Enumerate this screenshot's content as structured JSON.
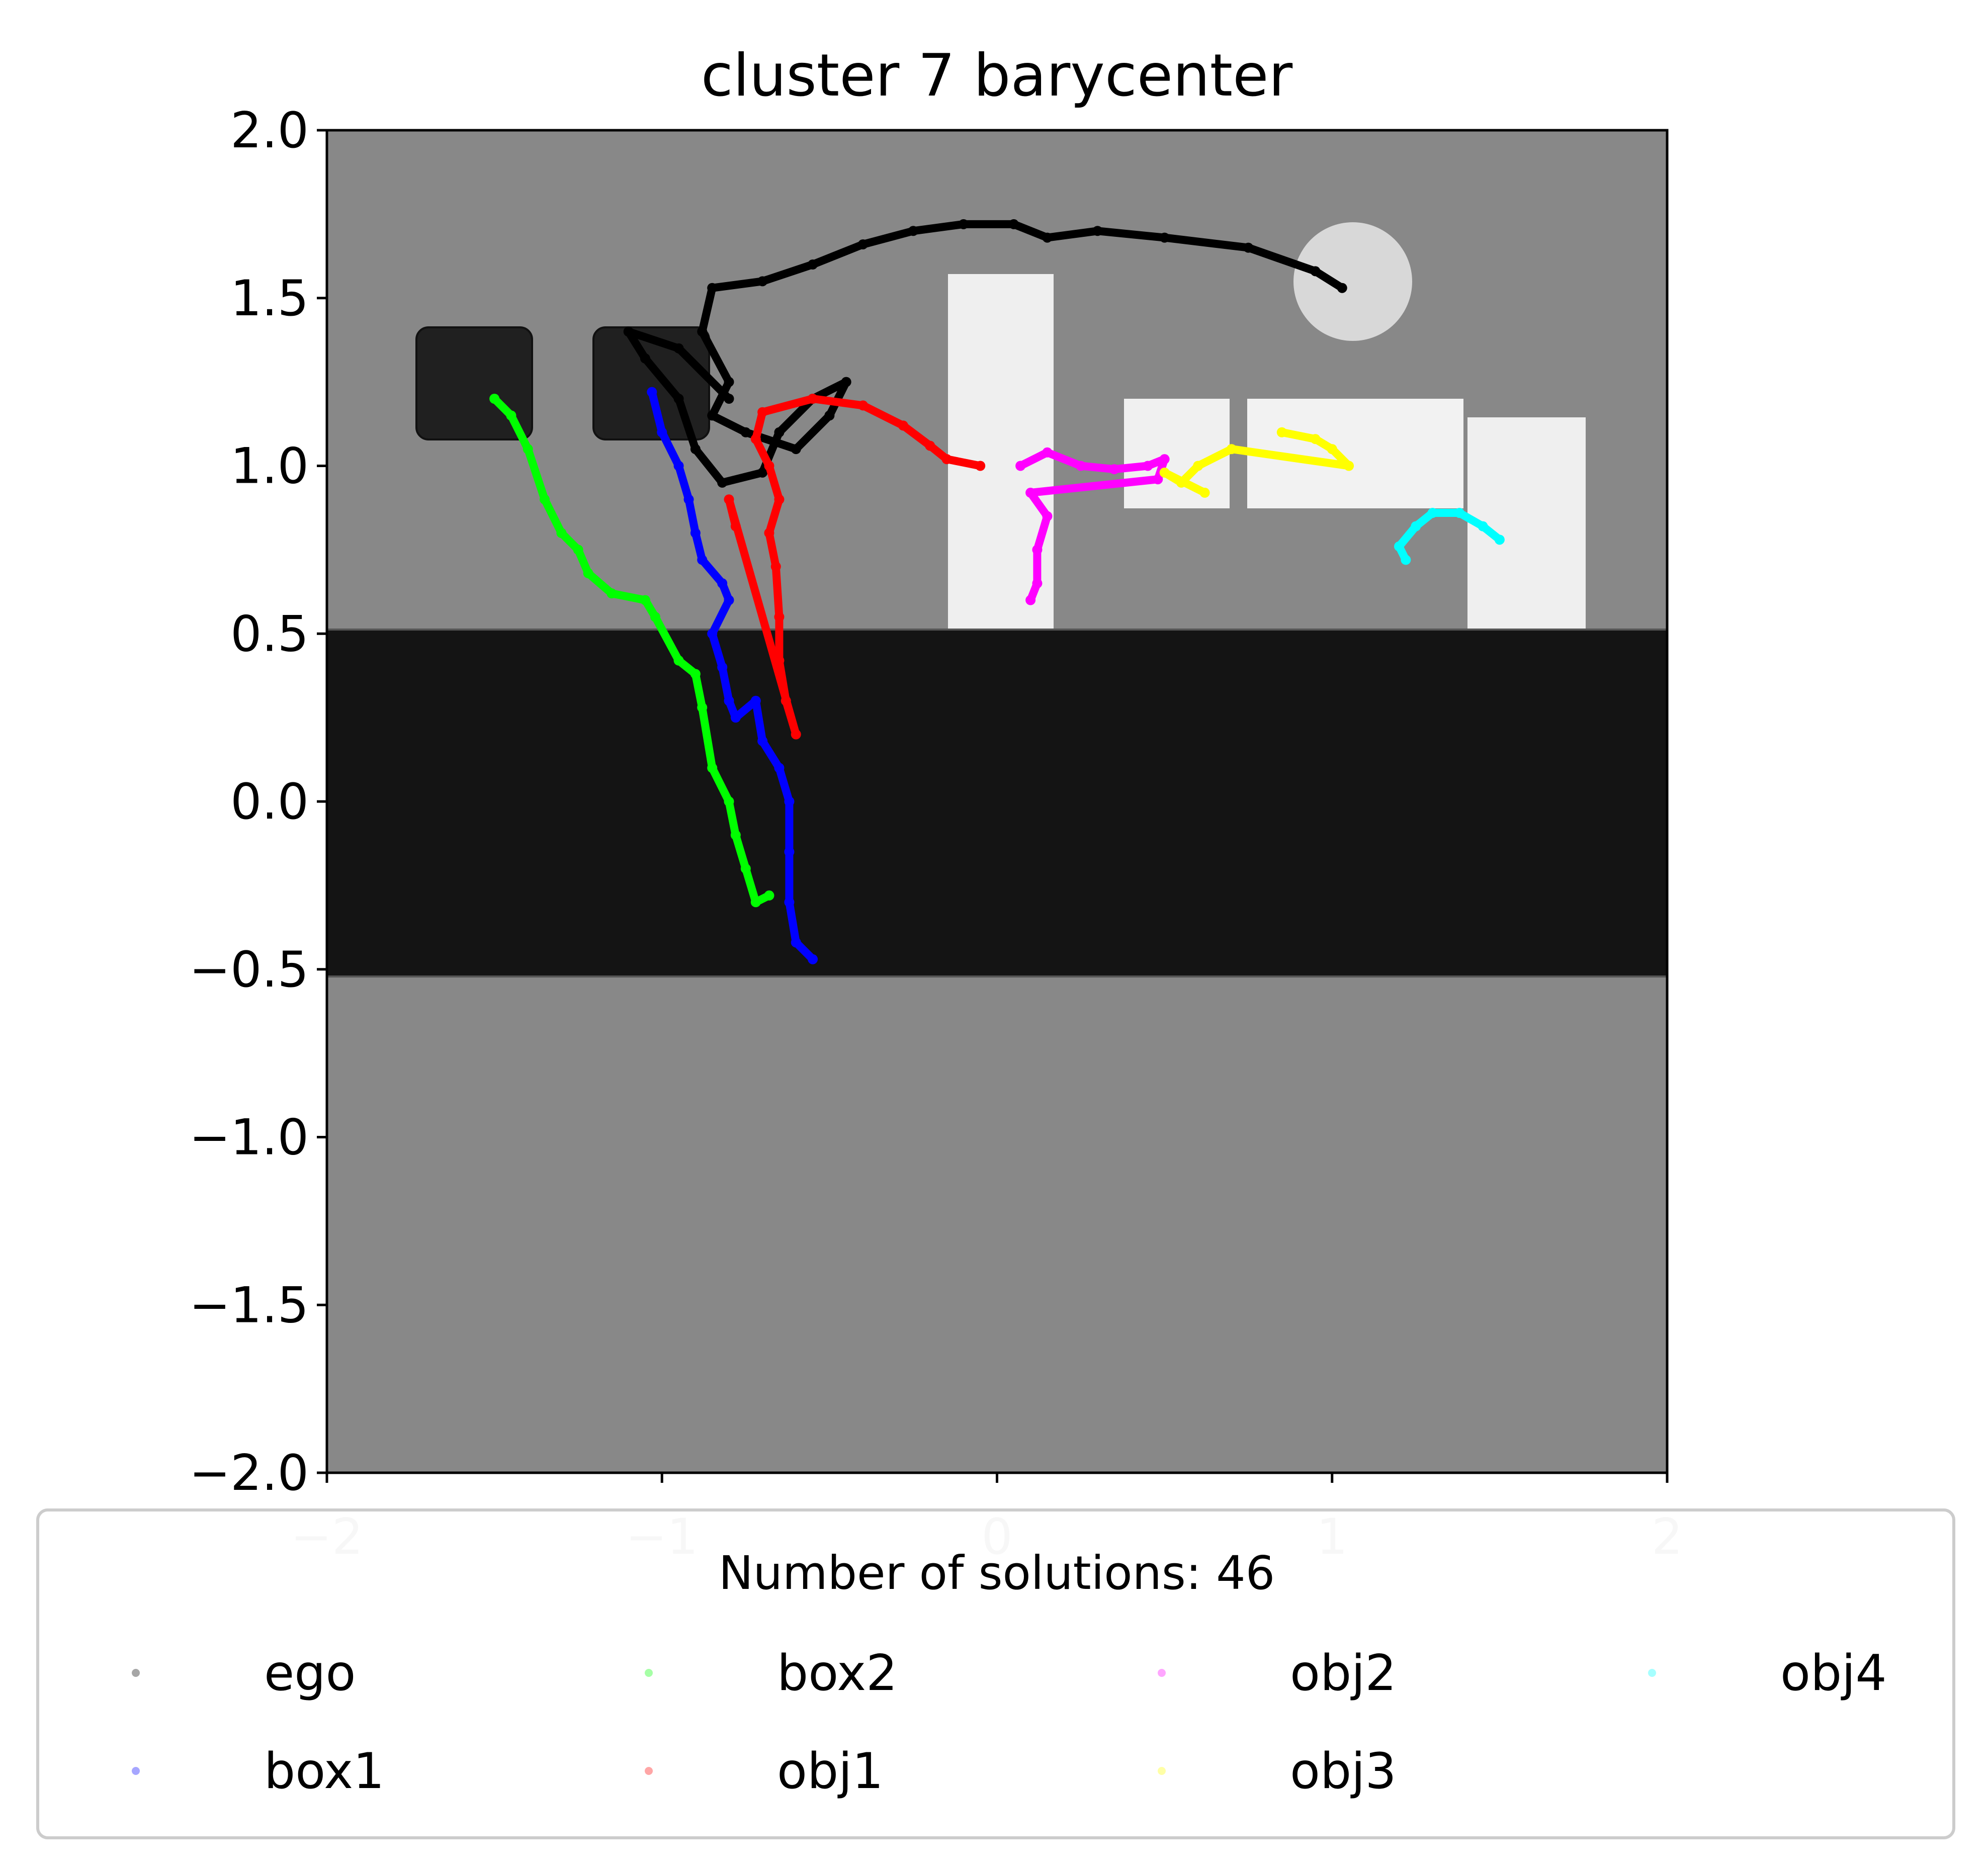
{
  "chart_data": {
    "type": "scatter",
    "title": "cluster 7 barycenter",
    "xlabel": "",
    "ylabel": "",
    "xlim": [
      -2,
      2
    ],
    "ylim": [
      -2,
      2
    ],
    "x_ticks": [
      -2,
      -1,
      0,
      1,
      2
    ],
    "y_ticks": [
      2.0,
      1.5,
      1.0,
      0.5,
      0.0,
      -0.5,
      -1.0,
      -1.5,
      -2.0
    ],
    "x_tick_labels": [
      "−2",
      "−1",
      "0",
      "1",
      "2"
    ],
    "y_tick_labels": [
      "2.0",
      "1.5",
      "1.0",
      "0.5",
      "0.0",
      "−0.5",
      "−1.0",
      "−1.5",
      "−2.0"
    ],
    "grid": false,
    "legend": {
      "title": "Number of solutions: 46",
      "placement": "below plot",
      "columns": 4,
      "entries": [
        "ego",
        "box1",
        "box2",
        "obj1",
        "obj2",
        "obj3",
        "obj4"
      ]
    },
    "series": [
      {
        "name": "ego",
        "color": "#000000",
        "points": [
          [
            1.03,
            1.53
          ],
          [
            0.95,
            1.58
          ],
          [
            0.75,
            1.65
          ],
          [
            0.5,
            1.68
          ],
          [
            0.3,
            1.7
          ],
          [
            0.15,
            1.68
          ],
          [
            0.05,
            1.72
          ],
          [
            -0.1,
            1.72
          ],
          [
            -0.25,
            1.7
          ],
          [
            -0.4,
            1.66
          ],
          [
            -0.55,
            1.6
          ],
          [
            -0.7,
            1.55
          ],
          [
            -0.85,
            1.53
          ],
          [
            -0.88,
            1.4
          ],
          [
            -0.8,
            1.25
          ],
          [
            -0.85,
            1.15
          ],
          [
            -0.75,
            1.1
          ],
          [
            -0.6,
            1.05
          ],
          [
            -0.5,
            1.15
          ],
          [
            -0.45,
            1.25
          ],
          [
            -0.55,
            1.2
          ],
          [
            -0.65,
            1.1
          ],
          [
            -0.7,
            0.98
          ],
          [
            -0.82,
            0.95
          ],
          [
            -0.9,
            1.05
          ],
          [
            -0.95,
            1.2
          ],
          [
            -1.05,
            1.32
          ],
          [
            -1.1,
            1.4
          ],
          [
            -0.95,
            1.35
          ],
          [
            -0.8,
            1.2
          ]
        ]
      },
      {
        "name": "box1",
        "color": "#0000ff",
        "points": [
          [
            -1.03,
            1.22
          ],
          [
            -1.0,
            1.1
          ],
          [
            -0.95,
            1.0
          ],
          [
            -0.92,
            0.9
          ],
          [
            -0.9,
            0.8
          ],
          [
            -0.88,
            0.72
          ],
          [
            -0.82,
            0.65
          ],
          [
            -0.8,
            0.6
          ],
          [
            -0.85,
            0.5
          ],
          [
            -0.82,
            0.4
          ],
          [
            -0.8,
            0.3
          ],
          [
            -0.78,
            0.25
          ],
          [
            -0.72,
            0.3
          ],
          [
            -0.7,
            0.18
          ],
          [
            -0.65,
            0.1
          ],
          [
            -0.62,
            0.0
          ],
          [
            -0.62,
            -0.15
          ],
          [
            -0.62,
            -0.3
          ],
          [
            -0.6,
            -0.42
          ],
          [
            -0.55,
            -0.47
          ]
        ]
      },
      {
        "name": "box2",
        "color": "#00ff00",
        "points": [
          [
            -1.5,
            1.2
          ],
          [
            -1.45,
            1.15
          ],
          [
            -1.4,
            1.05
          ],
          [
            -1.35,
            0.9
          ],
          [
            -1.3,
            0.8
          ],
          [
            -1.25,
            0.75
          ],
          [
            -1.22,
            0.68
          ],
          [
            -1.15,
            0.62
          ],
          [
            -1.05,
            0.6
          ],
          [
            -1.02,
            0.55
          ],
          [
            -0.95,
            0.42
          ],
          [
            -0.9,
            0.38
          ],
          [
            -0.88,
            0.28
          ],
          [
            -0.85,
            0.1
          ],
          [
            -0.8,
            0.0
          ],
          [
            -0.78,
            -0.1
          ],
          [
            -0.75,
            -0.2
          ],
          [
            -0.72,
            -0.3
          ],
          [
            -0.68,
            -0.28
          ]
        ]
      },
      {
        "name": "obj1",
        "color": "#ff0000",
        "points": [
          [
            -0.05,
            1.0
          ],
          [
            -0.15,
            1.02
          ],
          [
            -0.2,
            1.06
          ],
          [
            -0.28,
            1.12
          ],
          [
            -0.4,
            1.18
          ],
          [
            -0.55,
            1.2
          ],
          [
            -0.7,
            1.16
          ],
          [
            -0.72,
            1.08
          ],
          [
            -0.68,
            1.0
          ],
          [
            -0.65,
            0.9
          ],
          [
            -0.68,
            0.8
          ],
          [
            -0.66,
            0.7
          ],
          [
            -0.65,
            0.55
          ],
          [
            -0.65,
            0.42
          ],
          [
            -0.63,
            0.3
          ],
          [
            -0.6,
            0.2
          ],
          [
            -0.8,
            0.9
          ],
          [
            -0.78,
            0.82
          ]
        ]
      },
      {
        "name": "obj2",
        "color": "#ff00ff",
        "points": [
          [
            0.07,
            1.0
          ],
          [
            0.15,
            1.04
          ],
          [
            0.25,
            1.0
          ],
          [
            0.35,
            0.99
          ],
          [
            0.45,
            1.0
          ],
          [
            0.5,
            1.02
          ],
          [
            0.48,
            0.96
          ],
          [
            0.1,
            0.92
          ],
          [
            0.15,
            0.85
          ],
          [
            0.12,
            0.75
          ],
          [
            0.12,
            0.65
          ],
          [
            0.1,
            0.6
          ]
        ]
      },
      {
        "name": "obj3",
        "color": "#ffff00",
        "points": [
          [
            0.85,
            1.1
          ],
          [
            0.95,
            1.08
          ],
          [
            1.0,
            1.05
          ],
          [
            1.05,
            1.0
          ],
          [
            0.7,
            1.05
          ],
          [
            0.6,
            1.0
          ],
          [
            0.55,
            0.95
          ],
          [
            0.5,
            0.98
          ],
          [
            0.62,
            0.92
          ]
        ]
      },
      {
        "name": "obj4",
        "color": "#00ffff",
        "points": [
          [
            1.5,
            0.78
          ],
          [
            1.45,
            0.82
          ],
          [
            1.38,
            0.86
          ],
          [
            1.3,
            0.86
          ],
          [
            1.25,
            0.82
          ],
          [
            1.2,
            0.76
          ],
          [
            1.22,
            0.72
          ]
        ]
      }
    ]
  }
}
